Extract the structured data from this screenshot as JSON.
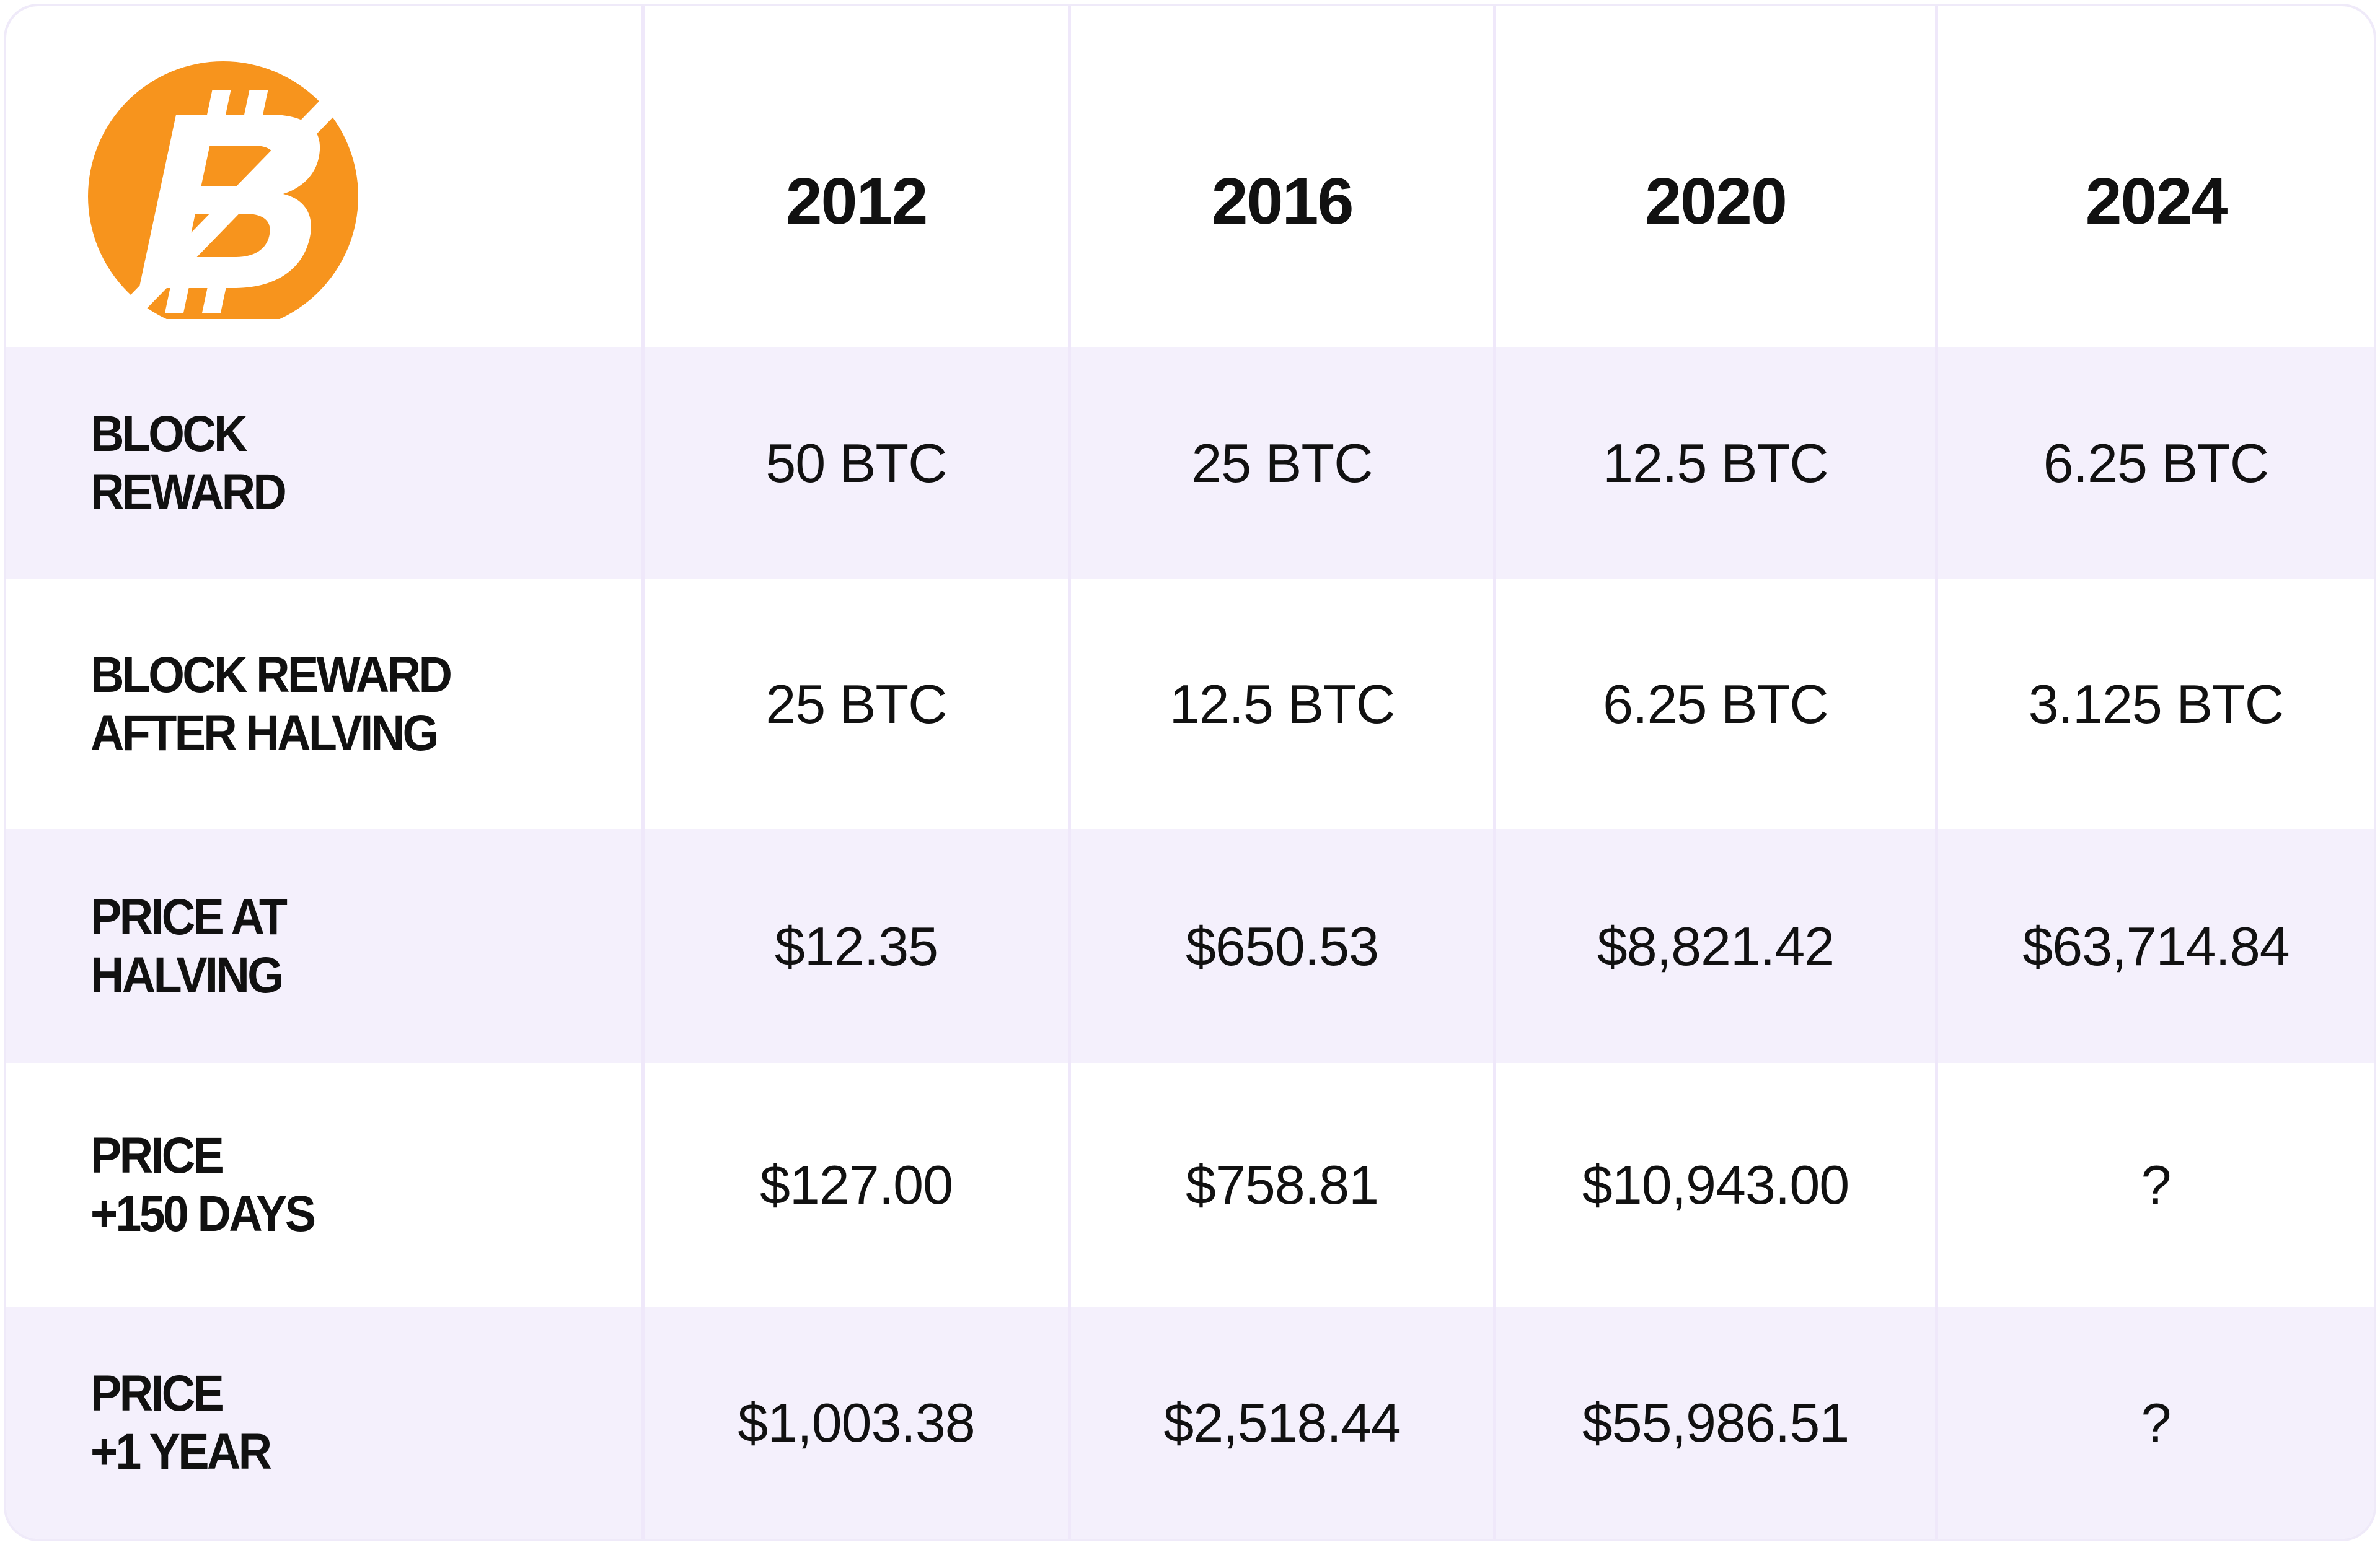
{
  "table": {
    "header": [
      "2012",
      "2016",
      "2020",
      "2024"
    ],
    "rows": [
      {
        "label": [
          "BLOCK",
          "REWARD"
        ],
        "cells": [
          "50 BTC",
          "25 BTC",
          "12.5 BTC",
          "6.25 BTC"
        ]
      },
      {
        "label": [
          "BLOCK REWARD",
          "AFTER HALVING"
        ],
        "cells": [
          "25 BTC",
          "12.5 BTC",
          "6.25 BTC",
          "3.125 BTC"
        ]
      },
      {
        "label": [
          "PRICE AT",
          "HALVING"
        ],
        "cells": [
          "$12.35",
          "$650.53",
          "$8,821.42",
          "$63,714.84"
        ]
      },
      {
        "label": [
          "PRICE",
          "+150 DAYS"
        ],
        "cells": [
          "$127.00",
          "$758.81",
          "$10,943.00",
          "?"
        ]
      },
      {
        "label": [
          "PRICE",
          "+1 YEAR"
        ],
        "cells": [
          "$1,003.38",
          "$2,518.44",
          "$55,986.51",
          "?"
        ]
      }
    ]
  }
}
